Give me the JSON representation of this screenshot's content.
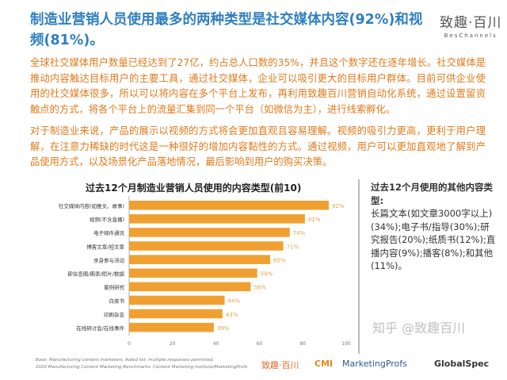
{
  "header": {
    "title": "制造业营销人员使用最多的两种类型是社交媒体内容(92%)和视频(81%)。",
    "logo_cn": "致趣·百川",
    "logo_en": "BesChannels"
  },
  "body": {
    "p1": "全球社交媒体用户数量已经达到了27亿，约占总人口数的35%，并且这个数字还在逐年增长。社交媒体是推动内容触达目标用户的主要工具，通过社交媒体，企业可以吸引更大的目标用户群体。目前可供企业使用的社交媒体很多，所以可以将内容在多个平台上发布，再利用致趣百川营销自动化系统，通过设置留资触点的方式，将各个平台上的流量汇集到同一个平台（如微信为主），进行线索孵化。",
    "p2": "对于制造业来说，产品的展示以视频的方式将会更加直观且容易理解。视频的吸引力更高，更利于用户理解，在注意力稀缺的时代这是一种很好的增加内容黏性的方式。通过视频，用户可以更加直观地了解到产品使用方式，以及场景化产品落地情况，最后影响到用户的购买决策。"
  },
  "chart_data": {
    "type": "bar",
    "orientation": "horizontal",
    "title": "过去12个月制造业营销人员使用的内容类型(前10)",
    "categories": [
      "社交媒体内容(如推文、故事)",
      "视频(不含直播)",
      "电子邮件通讯",
      "博客文章/短文章",
      "亲身参与活动",
      "即信息图/图表/照片/数据",
      "案例研究",
      "白皮书",
      "印刷杂志",
      "在线研讨会/在线事件"
    ],
    "values": [
      92,
      81,
      74,
      71,
      65,
      59,
      56,
      44,
      43,
      39
    ],
    "data_labels": [
      "92%",
      "81%",
      "74%",
      "71%",
      "65%",
      "59%",
      "56%",
      "44%",
      "43%",
      "39%"
    ],
    "xlim": [
      0,
      100
    ],
    "xticks": [
      "0",
      "20",
      "40",
      "60",
      "80",
      "100"
    ],
    "bar_color": "#f0a030",
    "label_color": "#e3a34a"
  },
  "sidebar": {
    "title": "过去12个月使用的其他内容类型:",
    "text": "长篇文本(如文章3000字以上)(34%);电子书/指导(30%);研究报告(20%);纸质书(12%);直播内容(9%);播客(8%);和其他(11%)。"
  },
  "footer": {
    "source1": "Base: Manufacturing content marketers. Aided list; multiple responses permitted.",
    "source2": "2020 Manufacturing Content Marketing Benchmarks: Content Marketing Institute/MarketingProfs",
    "logos": [
      "致趣·百川",
      "CMI",
      "MarketingProfs",
      "GlobalSpec"
    ],
    "watermark": "知乎 @致趣百川"
  }
}
